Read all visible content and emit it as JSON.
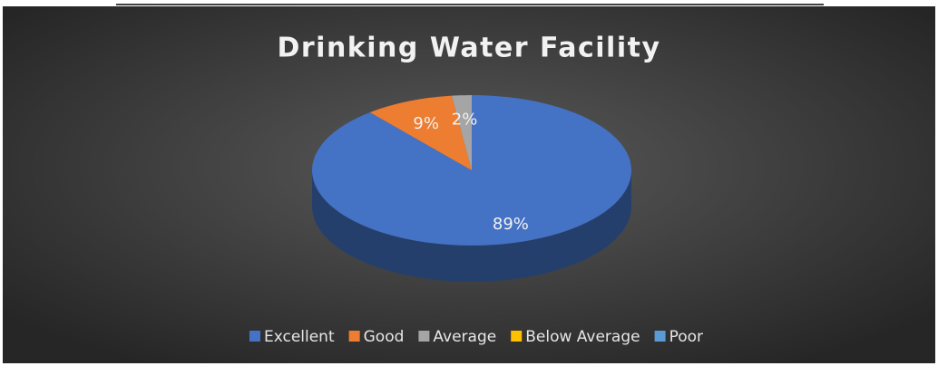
{
  "chart_data": {
    "type": "pie",
    "title": "Drinking Water Facility",
    "categories": [
      "Excellent",
      "Good",
      "Average",
      "Below Average",
      "Poor"
    ],
    "values": [
      89,
      9,
      2,
      0,
      0
    ],
    "value_labels": [
      "89%",
      "9%",
      "2%",
      null,
      null
    ],
    "colors": [
      "#4472c4",
      "#ed7d31",
      "#a5a5a5",
      "#ffc000",
      "#5b9bd5"
    ],
    "legend": "bottom"
  }
}
